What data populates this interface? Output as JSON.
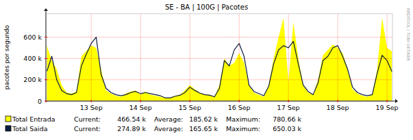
{
  "chart_data": {
    "type": "line",
    "title": "SE - BA | 100G | Pacotes",
    "y_label": "pacotes por segundo",
    "annotation": "RRDTOOL / TOBI OETIKER",
    "legend": "bottom-left",
    "grid": true,
    "x": [
      12.6,
      12.7,
      12.8,
      12.9,
      13.0,
      13.1,
      13.2,
      13.3,
      13.4,
      13.5,
      13.6,
      13.7,
      13.8,
      13.9,
      14.0,
      14.1,
      14.2,
      14.3,
      14.4,
      14.5,
      14.6,
      14.7,
      14.8,
      14.9,
      15.0,
      15.1,
      15.2,
      15.3,
      15.4,
      15.5,
      15.6,
      15.7,
      15.8,
      15.9,
      16.0,
      16.1,
      16.2,
      16.3,
      16.4,
      16.5,
      16.6,
      16.7,
      16.8,
      16.9,
      17.0,
      17.1,
      17.2,
      17.3,
      17.4,
      17.5,
      17.6,
      17.7,
      17.8,
      17.9,
      18.0,
      18.1,
      18.2,
      18.3,
      18.4,
      18.5,
      18.6,
      18.7,
      18.8,
      18.9,
      19.0,
      19.1,
      19.2,
      19.3,
      19.4,
      19.5,
      19.6
    ],
    "xlim": [
      12.58,
      19.61
    ],
    "xticks": [
      {
        "value": 13.5,
        "label": "13 Sep"
      },
      {
        "value": 14.5,
        "label": "14 Sep"
      },
      {
        "value": 15.5,
        "label": "15 Sep"
      },
      {
        "value": 16.5,
        "label": "16 Sep"
      },
      {
        "value": 17.5,
        "label": "17 Sep"
      },
      {
        "value": 18.5,
        "label": "18 Sep"
      },
      {
        "value": 19.5,
        "label": "19 Sep"
      }
    ],
    "ylim": [
      0,
      820000
    ],
    "yticks": [
      0,
      {
        "value": 200000,
        "label": "200 k"
      },
      {
        "value": 400000,
        "label": "400 k"
      },
      {
        "value": 600000,
        "label": "600 k"
      }
    ],
    "series": [
      {
        "name": "Total Entrada",
        "type": "area",
        "color": "#ffff00",
        "stats": [
          {
            "label": "Current:",
            "text": "466.54 k"
          },
          {
            "label": "Average:",
            "text": "185.62 k"
          },
          {
            "label": "Maximum:",
            "text": "780.66 k"
          }
        ],
        "values": [
          520000,
          380000,
          300000,
          150000,
          80000,
          70000,
          90000,
          420000,
          470000,
          520000,
          500000,
          300000,
          100000,
          70000,
          50000,
          40000,
          70000,
          90000,
          100000,
          60000,
          90000,
          60000,
          50000,
          40000,
          30000,
          30000,
          50000,
          60000,
          100000,
          150000,
          110000,
          80000,
          60000,
          60000,
          40000,
          150000,
          400000,
          330000,
          360000,
          450000,
          360000,
          150000,
          80000,
          60000,
          40000,
          150000,
          400000,
          600000,
          780000,
          180000,
          740000,
          400000,
          150000,
          80000,
          60000,
          200000,
          430000,
          480000,
          530000,
          500000,
          450000,
          300000,
          110000,
          70000,
          50000,
          40000,
          60000,
          300000,
          780000,
          500000,
          466540
        ]
      },
      {
        "name": "Total Saida",
        "type": "line",
        "color": "#0a1e3c",
        "stats": [
          {
            "label": "Current:",
            "text": "274.89 k"
          },
          {
            "label": "Average:",
            "text": "165.65 k"
          },
          {
            "label": "Maximum:",
            "text": "650.03 k"
          }
        ],
        "values": [
          280000,
          420000,
          200000,
          100000,
          70000,
          60000,
          80000,
          330000,
          440000,
          540000,
          600000,
          250000,
          120000,
          80000,
          60000,
          50000,
          60000,
          80000,
          90000,
          70000,
          80000,
          70000,
          60000,
          50000,
          30000,
          30000,
          45000,
          55000,
          80000,
          130000,
          100000,
          75000,
          60000,
          55000,
          40000,
          120000,
          380000,
          330000,
          480000,
          540000,
          420000,
          150000,
          90000,
          70000,
          50000,
          140000,
          350000,
          480000,
          520000,
          500000,
          560000,
          350000,
          150000,
          90000,
          60000,
          170000,
          380000,
          420000,
          500000,
          520000,
          420000,
          300000,
          130000,
          80000,
          60000,
          50000,
          60000,
          260000,
          430000,
          380000,
          274890
        ]
      }
    ]
  }
}
